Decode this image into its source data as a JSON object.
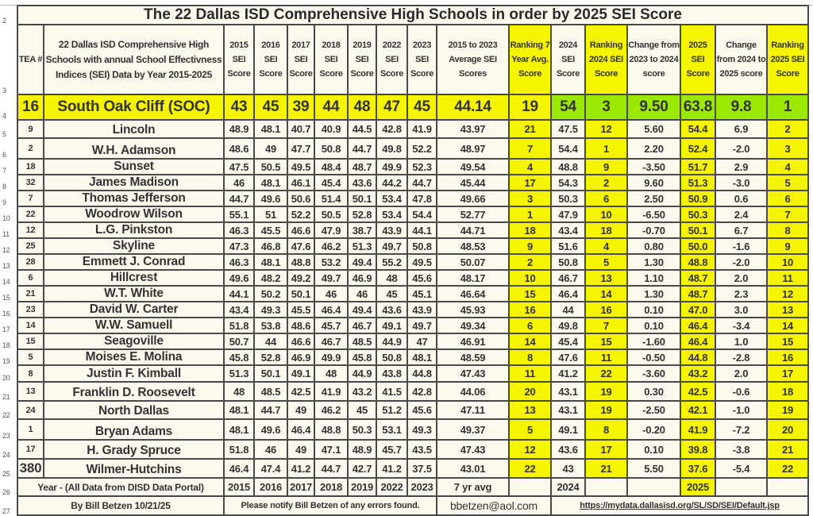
{
  "title": "The 22 Dallas ISD Comprehensive High Schools in order by 2025 SEI Score",
  "row_labels": [
    "2",
    "3",
    "4",
    "5",
    "6",
    "7",
    "8",
    "9",
    "10",
    "11",
    "12",
    "13",
    "14",
    "15",
    "16",
    "17",
    "18",
    "19",
    "20",
    "21",
    "22",
    "23",
    "24",
    "25",
    "26",
    "27"
  ],
  "headers": {
    "tea": "TEA #",
    "school": "22 Dallas ISD Comprehensive High Schools with annual School Effectivness Indices (SEI) Data by Year 2015-2025",
    "y2015": "2015 SEI Score",
    "y2016": "2016 SEI Score",
    "y2017": "2017 SEI Score",
    "y2018": "2018 SEI Score",
    "y2019": "2019 SEI Score",
    "y2022": "2022 SEI Score",
    "y2023": "2023 SEI Score",
    "avg": "2015 to 2023 Average SEI Scores",
    "rank7": "Ranking 7 Year Avg. Score",
    "sei2024": "2024 SEI Score",
    "rank2024": "Ranking 2024 SEI Score",
    "chg2324": "Change from 2023 to 2024 score",
    "sei2025": "2025 SEI Score",
    "chg2425": "Change from 2024 to 2025 score",
    "rank2025": "Ranking 2025 SEI Score"
  },
  "featured": {
    "tea": "16",
    "school": "South Oak Cliff (SOC)",
    "scores": [
      "43",
      "45",
      "39",
      "44",
      "48",
      "47",
      "45"
    ],
    "avg": "44.14",
    "rank7": "19",
    "sei2024": "54",
    "rank2024": "3",
    "chg2324": "9.50",
    "sei2025": "63.8",
    "chg2425": "9.8",
    "rank2025": "1"
  },
  "rows": [
    {
      "tea": "9",
      "school": "Lincoln",
      "scores": [
        "48.9",
        "48.1",
        "40.7",
        "40.9",
        "44.5",
        "42.8",
        "41.9"
      ],
      "avg": "43.97",
      "rank7": "21",
      "sei2024": "47.5",
      "rank2024": "12",
      "chg2324": "5.60",
      "sei2025": "54.4",
      "chg2425": "6.9",
      "rank2025": "2"
    },
    {
      "tea": "2",
      "school": "W.H. Adamson",
      "scores": [
        "48.6",
        "49",
        "47.7",
        "50.8",
        "44.7",
        "49.8",
        "52.2"
      ],
      "avg": "48.97",
      "rank7": "7",
      "sei2024": "54.4",
      "rank2024": "1",
      "chg2324": "2.20",
      "sei2025": "52.4",
      "chg2425": "-2.0",
      "rank2025": "3"
    },
    {
      "tea": "18",
      "school": "Sunset",
      "scores": [
        "47.5",
        "50.5",
        "49.5",
        "48.4",
        "48.7",
        "49.9",
        "52.3"
      ],
      "avg": "49.54",
      "rank7": "4",
      "sei2024": "48.8",
      "rank2024": "9",
      "chg2324": "-3.50",
      "sei2025": "51.7",
      "chg2425": "2.9",
      "rank2025": "4"
    },
    {
      "tea": "32",
      "school": "James Madison",
      "scores": [
        "46",
        "48.1",
        "46.1",
        "45.4",
        "43.6",
        "44.2",
        "44.7"
      ],
      "avg": "45.44",
      "rank7": "17",
      "sei2024": "54.3",
      "rank2024": "2",
      "chg2324": "9.60",
      "sei2025": "51.3",
      "chg2425": "-3.0",
      "rank2025": "5"
    },
    {
      "tea": "7",
      "school": "Thomas Jefferson",
      "scores": [
        "44.7",
        "49.6",
        "50.6",
        "51.4",
        "50.1",
        "53.4",
        "47.8"
      ],
      "avg": "49.66",
      "rank7": "3",
      "sei2024": "50.3",
      "rank2024": "6",
      "chg2324": "2.50",
      "sei2025": "50.9",
      "chg2425": "0.6",
      "rank2025": "6"
    },
    {
      "tea": "22",
      "school": "Woodrow Wilson",
      "scores": [
        "55.1",
        "51",
        "52.2",
        "50.5",
        "52.8",
        "53.4",
        "54.4"
      ],
      "avg": "52.77",
      "rank7": "1",
      "sei2024": "47.9",
      "rank2024": "10",
      "chg2324": "-6.50",
      "sei2025": "50.3",
      "chg2425": "2.4",
      "rank2025": "7"
    },
    {
      "tea": "12",
      "school": "L.G. Pinkston",
      "scores": [
        "46.3",
        "45.5",
        "46.6",
        "47.9",
        "38.7",
        "43.9",
        "44.1"
      ],
      "avg": "44.71",
      "rank7": "18",
      "sei2024": "43.4",
      "rank2024": "18",
      "chg2324": "-0.70",
      "sei2025": "50.1",
      "chg2425": "6.7",
      "rank2025": "8"
    },
    {
      "tea": "25",
      "school": "Skyline",
      "scores": [
        "47.3",
        "46.8",
        "47.6",
        "46.2",
        "51.3",
        "49.7",
        "50.8"
      ],
      "avg": "48.53",
      "rank7": "9",
      "sei2024": "51.6",
      "rank2024": "4",
      "chg2324": "0.80",
      "sei2025": "50.0",
      "chg2425": "-1.6",
      "rank2025": "9"
    },
    {
      "tea": "28",
      "school": "Emmett J. Conrad",
      "scores": [
        "46.3",
        "48.1",
        "48.8",
        "53.2",
        "49.4",
        "55.2",
        "49.5"
      ],
      "avg": "50.07",
      "rank7": "2",
      "sei2024": "50.8",
      "rank2024": "5",
      "chg2324": "1.30",
      "sei2025": "48.8",
      "chg2425": "-2.0",
      "rank2025": "10"
    },
    {
      "tea": "6",
      "school": "Hillcrest",
      "scores": [
        "49.6",
        "48.2",
        "49.2",
        "49.7",
        "46.9",
        "48",
        "45.6"
      ],
      "avg": "48.17",
      "rank7": "10",
      "sei2024": "46.7",
      "rank2024": "13",
      "chg2324": "1.10",
      "sei2025": "48.7",
      "chg2425": "2.0",
      "rank2025": "11"
    },
    {
      "tea": "21",
      "school": "W.T. White",
      "scores": [
        "44.1",
        "50.2",
        "50.1",
        "46",
        "46",
        "45",
        "45.1"
      ],
      "avg": "46.64",
      "rank7": "15",
      "sei2024": "46.4",
      "rank2024": "14",
      "chg2324": "1.30",
      "sei2025": "48.7",
      "chg2425": "2.3",
      "rank2025": "12"
    },
    {
      "tea": "23",
      "school": "David W. Carter",
      "scores": [
        "43.4",
        "49.3",
        "45.5",
        "46.4",
        "49.4",
        "43.6",
        "43.9"
      ],
      "avg": "45.93",
      "rank7": "16",
      "sei2024": "44",
      "rank2024": "16",
      "chg2324": "0.10",
      "sei2025": "47.0",
      "chg2425": "3.0",
      "rank2025": "13"
    },
    {
      "tea": "14",
      "school": "W.W. Samuell",
      "scores": [
        "51.8",
        "53.8",
        "48.6",
        "45.7",
        "46.7",
        "49.1",
        "49.7"
      ],
      "avg": "49.34",
      "rank7": "6",
      "sei2024": "49.8",
      "rank2024": "7",
      "chg2324": "0.10",
      "sei2025": "46.4",
      "chg2425": "-3.4",
      "rank2025": "14"
    },
    {
      "tea": "15",
      "school": "Seagoville",
      "scores": [
        "50.7",
        "44",
        "46.6",
        "46.7",
        "48.5",
        "44.9",
        "47"
      ],
      "avg": "46.91",
      "rank7": "14",
      "sei2024": "45.4",
      "rank2024": "15",
      "chg2324": "-1.60",
      "sei2025": "46.4",
      "chg2425": "1.0",
      "rank2025": "15"
    },
    {
      "tea": "5",
      "school": "Moises E. Molina",
      "scores": [
        "45.8",
        "52.8",
        "46.9",
        "49.9",
        "45.8",
        "50.8",
        "48.1"
      ],
      "avg": "48.59",
      "rank7": "8",
      "sei2024": "47.6",
      "rank2024": "11",
      "chg2324": "-0.50",
      "sei2025": "44.8",
      "chg2425": "-2.8",
      "rank2025": "16"
    },
    {
      "tea": "8",
      "school": "Justin F. Kimball",
      "scores": [
        "51.3",
        "50.1",
        "49.1",
        "48",
        "44.9",
        "43.8",
        "44.8"
      ],
      "avg": "47.43",
      "rank7": "11",
      "sei2024": "41.2",
      "rank2024": "22",
      "chg2324": "-3.60",
      "sei2025": "43.2",
      "chg2425": "2.0",
      "rank2025": "17"
    },
    {
      "tea": "13",
      "school": "Franklin D. Roosevelt",
      "scores": [
        "48",
        "48.5",
        "42.5",
        "41.9",
        "43.2",
        "41.5",
        "42.8"
      ],
      "avg": "44.06",
      "rank7": "20",
      "sei2024": "43.1",
      "rank2024": "19",
      "chg2324": "0.30",
      "sei2025": "42.5",
      "chg2425": "-0.6",
      "rank2025": "18"
    },
    {
      "tea": "24",
      "school": "North Dallas",
      "scores": [
        "48.1",
        "44.7",
        "49",
        "46.2",
        "45",
        "51.2",
        "45.6"
      ],
      "avg": "47.11",
      "rank7": "13",
      "sei2024": "43.1",
      "rank2024": "19",
      "chg2324": "-2.50",
      "sei2025": "42.1",
      "chg2425": "-1.0",
      "rank2025": "19"
    },
    {
      "tea": "1",
      "school": "Bryan Adams",
      "scores": [
        "48.1",
        "49.6",
        "46.4",
        "48.8",
        "50.3",
        "53.1",
        "49.3"
      ],
      "avg": "49.37",
      "rank7": "5",
      "sei2024": "49.1",
      "rank2024": "8",
      "chg2324": "-0.20",
      "sei2025": "41.9",
      "chg2425": "-7.2",
      "rank2025": "20"
    },
    {
      "tea": "17",
      "school": "H. Grady Spruce",
      "scores": [
        "51.8",
        "46",
        "49",
        "47.1",
        "48.9",
        "45.7",
        "43.5"
      ],
      "avg": "47.43",
      "rank7": "12",
      "sei2024": "43.6",
      "rank2024": "17",
      "chg2324": "0.10",
      "sei2025": "39.8",
      "chg2425": "-3.8",
      "rank2025": "21"
    },
    {
      "tea": "380",
      "school": "Wilmer-Hutchins",
      "scores": [
        "46.4",
        "47.4",
        "41.2",
        "44.7",
        "42.7",
        "41.2",
        "37.5"
      ],
      "avg": "43.01",
      "rank7": "22",
      "sei2024": "43",
      "rank2024": "21",
      "chg2324": "5.50",
      "sei2025": "37.6",
      "chg2425": "-5.4",
      "rank2025": "22"
    }
  ],
  "year_row": {
    "label": "Year - (All Data from DISD Data Portal)",
    "years": [
      "2015",
      "2016",
      "2017",
      "2018",
      "2019",
      "2022",
      "2023"
    ],
    "avg": "7 yr avg",
    "y2024": "2024",
    "y2025": "2025"
  },
  "footer": {
    "author": "By Bill Betzen  10/21/25",
    "notice": "Please notify Bill Betzen of any errors found.",
    "email": "bbetzen@aol.com",
    "link": "https://mydata.dallasisd.org/SL/SD/SEI/Default.jsp"
  },
  "colors": {
    "yellow": "#f7f400",
    "green": "#9be800",
    "cell_bg": "#fdf9ef"
  }
}
